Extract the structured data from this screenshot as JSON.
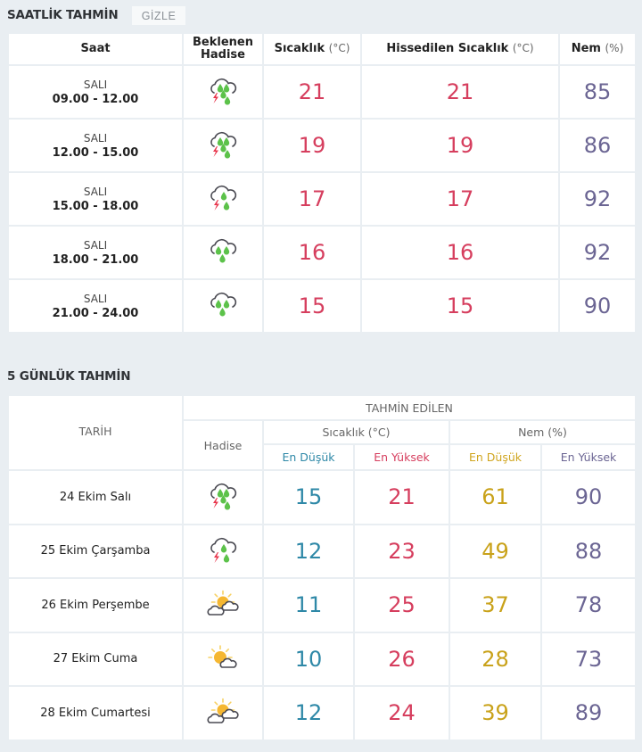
{
  "hourly": {
    "title": "SAATLİK TAHMİN",
    "hide_label": "GİZLE",
    "headers": {
      "time": "Saat",
      "event_line1": "Beklenen",
      "event_line2": "Hadise",
      "temp": "Sıcaklık",
      "temp_unit": "(°C)",
      "feels": "Hissedilen Sıcaklık",
      "feels_unit": "(°C)",
      "humidity": "Nem",
      "humidity_unit": "(%)"
    },
    "rows": [
      {
        "day": "SALI",
        "range": "09.00 - 12.00",
        "icon": "thunder-rain-icon",
        "temp": "21",
        "feels": "21",
        "humidity": "85"
      },
      {
        "day": "SALI",
        "range": "12.00 - 15.00",
        "icon": "thunder-rain-icon",
        "temp": "19",
        "feels": "19",
        "humidity": "86"
      },
      {
        "day": "SALI",
        "range": "15.00 - 18.00",
        "icon": "thunder-shower-icon",
        "temp": "17",
        "feels": "17",
        "humidity": "92"
      },
      {
        "day": "SALI",
        "range": "18.00 - 21.00",
        "icon": "rain-icon",
        "temp": "16",
        "feels": "16",
        "humidity": "92"
      },
      {
        "day": "SALI",
        "range": "21.00 - 24.00",
        "icon": "rain-icon",
        "temp": "15",
        "feels": "15",
        "humidity": "90"
      }
    ]
  },
  "daily": {
    "title": "5 GÜNLÜK TAHMİN",
    "headers": {
      "date": "TARİH",
      "forecast": "TAHMİN EDİLEN",
      "event": "Hadise",
      "temp": "Sıcaklık (°C)",
      "humidity": "Nem (%)",
      "temp_min": "En Düşük",
      "temp_max": "En Yüksek",
      "hum_min": "En Düşük",
      "hum_max": "En Yüksek"
    },
    "rows": [
      {
        "date": "24 Ekim Salı",
        "icon": "thunder-rain-icon",
        "temp_min": "15",
        "temp_max": "21",
        "hum_min": "61",
        "hum_max": "90"
      },
      {
        "date": "25 Ekim Çarşamba",
        "icon": "thunder-shower-icon",
        "temp_min": "12",
        "temp_max": "23",
        "hum_min": "49",
        "hum_max": "88"
      },
      {
        "date": "26 Ekim Perşembe",
        "icon": "partly-cloudy-icon",
        "temp_min": "11",
        "temp_max": "25",
        "hum_min": "37",
        "hum_max": "78"
      },
      {
        "date": "27 Ekim Cuma",
        "icon": "sun-cloud-icon",
        "temp_min": "10",
        "temp_max": "26",
        "hum_min": "28",
        "hum_max": "73"
      },
      {
        "date": "28 Ekim Cumartesi",
        "icon": "partly-cloudy-icon",
        "temp_min": "12",
        "temp_max": "24",
        "hum_min": "39",
        "hum_max": "89"
      }
    ]
  },
  "colors": {
    "temp": "#d63e5e",
    "humidity": "#6b6593",
    "min_temp": "#2e88a7",
    "min_humidity": "#c9a21a",
    "rain_drop": "#5cc24a",
    "lightning": "#e8334a",
    "sun": "#f5b731"
  }
}
